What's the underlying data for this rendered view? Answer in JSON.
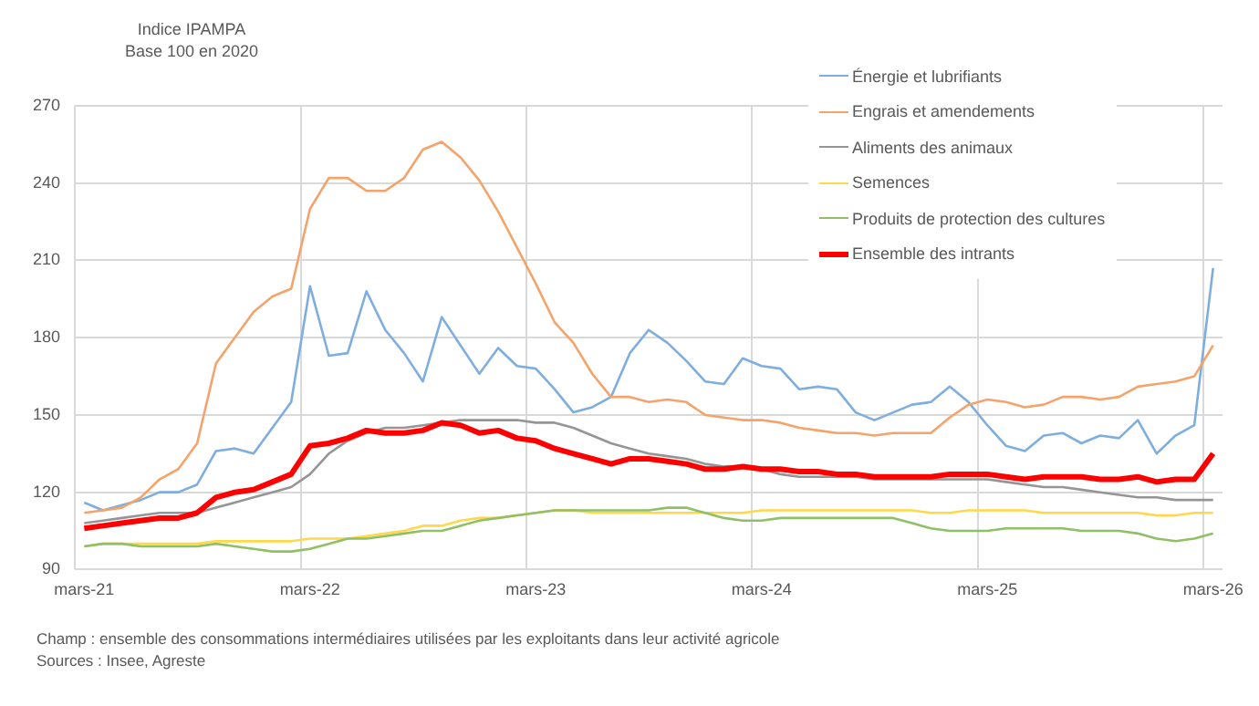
{
  "chart_data": {
    "type": "line",
    "title": "Indice IPAMPA",
    "subtitle": "Base 100 en 2020",
    "categories": [
      "mars-21",
      null,
      null,
      null,
      null,
      null,
      null,
      null,
      null,
      null,
      null,
      null,
      "mars-22",
      null,
      null,
      null,
      null,
      null,
      null,
      null,
      null,
      null,
      null,
      null,
      "mars-23",
      null,
      null,
      null,
      null,
      null,
      null,
      null,
      null,
      null,
      null,
      null,
      "mars-24",
      null,
      null,
      null,
      null,
      null,
      null,
      null,
      null,
      null,
      null,
      null,
      "mars-25",
      null,
      null,
      null,
      null,
      null,
      null,
      null,
      null,
      null,
      null,
      null,
      "mars-26"
    ],
    "series": [
      {
        "name": "Énergie et lubrifiants",
        "color": "#7eaee0",
        "values": [
          116,
          113,
          115,
          117,
          120,
          120,
          123,
          136,
          137,
          135,
          145,
          155,
          200,
          173,
          174,
          198,
          183,
          174,
          163,
          188,
          177,
          166,
          176,
          169,
          168,
          160,
          151,
          153,
          157,
          174,
          183,
          178,
          171,
          163,
          162,
          172,
          169,
          168,
          160,
          161,
          160,
          151,
          148,
          151,
          154,
          155,
          161,
          155,
          146,
          138,
          136,
          142,
          143,
          139,
          142,
          141,
          148,
          135,
          142,
          146,
          207
        ]
      },
      {
        "name": "Engrais et amendements",
        "color": "#f4a36a",
        "values": [
          112,
          113,
          114,
          118,
          125,
          129,
          139,
          170,
          180,
          190,
          196,
          199,
          230,
          242,
          242,
          237,
          237,
          242,
          253,
          256,
          250,
          241,
          229,
          215,
          201,
          186,
          178,
          166,
          157,
          157,
          155,
          156,
          155,
          150,
          149,
          148,
          148,
          147,
          145,
          144,
          143,
          143,
          142,
          143,
          143,
          143,
          149,
          154,
          156,
          155,
          153,
          154,
          157,
          157,
          156,
          157,
          161,
          162,
          163,
          165,
          177
        ]
      },
      {
        "name": "Aliments des animaux",
        "color": "#959595",
        "values": [
          108,
          109,
          110,
          111,
          112,
          112,
          112,
          114,
          116,
          118,
          120,
          122,
          127,
          135,
          140,
          143,
          145,
          145,
          146,
          147,
          148,
          148,
          148,
          148,
          147,
          147,
          145,
          142,
          139,
          137,
          135,
          134,
          133,
          131,
          130,
          130,
          129,
          127,
          126,
          126,
          126,
          126,
          125,
          125,
          125,
          125,
          125,
          125,
          125,
          124,
          123,
          122,
          122,
          121,
          120,
          119,
          118,
          118,
          117,
          117,
          117
        ]
      },
      {
        "name": "Semences",
        "color": "#ffd84a",
        "values": [
          99,
          100,
          100,
          100,
          100,
          100,
          100,
          101,
          101,
          101,
          101,
          101,
          102,
          102,
          102,
          103,
          104,
          105,
          107,
          107,
          109,
          110,
          110,
          111,
          112,
          113,
          113,
          112,
          112,
          112,
          112,
          112,
          112,
          112,
          112,
          112,
          113,
          113,
          113,
          113,
          113,
          113,
          113,
          113,
          113,
          112,
          112,
          113,
          113,
          113,
          113,
          112,
          112,
          112,
          112,
          112,
          112,
          111,
          111,
          112,
          112
        ]
      },
      {
        "name": "Produits de protection des cultures",
        "color": "#8fc065",
        "values": [
          99,
          100,
          100,
          99,
          99,
          99,
          99,
          100,
          99,
          98,
          97,
          97,
          98,
          100,
          102,
          102,
          103,
          104,
          105,
          105,
          107,
          109,
          110,
          111,
          112,
          113,
          113,
          113,
          113,
          113,
          113,
          114,
          114,
          112,
          110,
          109,
          109,
          110,
          110,
          110,
          110,
          110,
          110,
          110,
          108,
          106,
          105,
          105,
          105,
          106,
          106,
          106,
          106,
          105,
          105,
          105,
          104,
          102,
          101,
          102,
          104
        ]
      },
      {
        "name": "Ensemble des intrants",
        "color": "#ff0000",
        "values": [
          106,
          107,
          108,
          109,
          110,
          110,
          112,
          118,
          120,
          121,
          124,
          127,
          138,
          139,
          141,
          144,
          143,
          143,
          144,
          147,
          146,
          143,
          144,
          141,
          140,
          137,
          135,
          133,
          131,
          133,
          133,
          132,
          131,
          129,
          129,
          130,
          129,
          129,
          128,
          128,
          127,
          127,
          126,
          126,
          126,
          126,
          127,
          127,
          127,
          126,
          125,
          126,
          126,
          126,
          125,
          125,
          126,
          124,
          125,
          125,
          135
        ]
      }
    ],
    "ylim": [
      90,
      270
    ],
    "yticks": [
      90,
      120,
      150,
      180,
      210,
      240,
      270
    ],
    "grid": true,
    "legend": "top right",
    "marker": "none",
    "annotations": [
      "Champ : ensemble des consommations intermédiaires utilisées par les exploitants dans leur activité agricole",
      "Sources : Insee, Agreste"
    ]
  }
}
